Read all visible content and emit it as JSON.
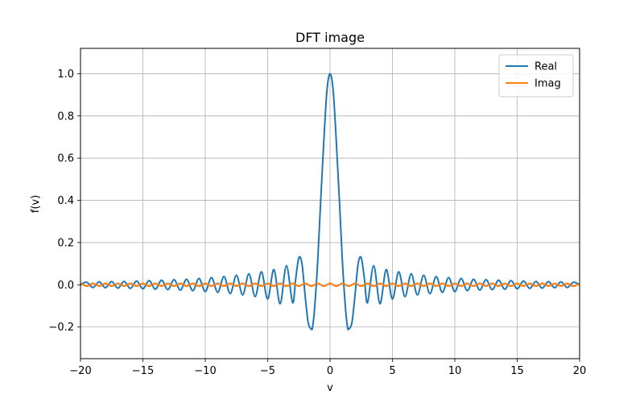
{
  "chart_data": {
    "type": "line",
    "title": "DFT image",
    "xlabel": "v",
    "ylabel": "f(v)",
    "xlim": [
      -20,
      20
    ],
    "ylim": [
      -0.35,
      1.12
    ],
    "xticks": [
      -20,
      -15,
      -10,
      -5,
      0,
      5,
      10,
      15,
      20
    ],
    "xtick_labels": [
      "−20",
      "−15",
      "−10",
      "−5",
      "0",
      "5",
      "10",
      "15",
      "20"
    ],
    "yticks": [
      -0.2,
      0.0,
      0.2,
      0.4,
      0.6,
      0.8,
      1.0
    ],
    "ytick_labels": [
      "−0.2",
      "0.0",
      "0.2",
      "0.4",
      "0.6",
      "0.8",
      "1.0"
    ],
    "grid": true,
    "legend_position": "upper right",
    "series": [
      {
        "name": "Real",
        "color": "#1f77b4",
        "x": [
          -20,
          -19.5,
          -19,
          -18.5,
          -18,
          -17.5,
          -17,
          -16.5,
          -16,
          -15.5,
          -15,
          -14.5,
          -14,
          -13.5,
          -13,
          -12.5,
          -12,
          -11.5,
          -11,
          -10.5,
          -10,
          -9.5,
          -9,
          -8.5,
          -8,
          -7.5,
          -7,
          -6.5,
          -6,
          -5.5,
          -5,
          -4.5,
          -4,
          -3.5,
          -3,
          -2.75,
          -2.5,
          -2.25,
          -2,
          -1.75,
          -1.5,
          -1.4,
          -1.25,
          -1,
          -0.75,
          -0.5,
          -0.25,
          0,
          0.25,
          0.5,
          0.75,
          1,
          1.25,
          1.4,
          1.5,
          1.75,
          2,
          2.25,
          2.5,
          2.75,
          3,
          3.5,
          4,
          4.5,
          5,
          5.5,
          6,
          6.5,
          7,
          7.5,
          8,
          8.5,
          9,
          9.5,
          10,
          10.5,
          11,
          11.5,
          12,
          12.5,
          13,
          13.5,
          14,
          14.5,
          15,
          15.5,
          16,
          16.5,
          17,
          17.5,
          18,
          18.5,
          19,
          19.5,
          20
        ],
        "y": [
          0.0,
          0.012,
          -0.013,
          0.014,
          -0.014,
          0.015,
          -0.016,
          0.016,
          -0.017,
          0.018,
          -0.019,
          0.02,
          -0.021,
          0.022,
          -0.023,
          0.024,
          -0.025,
          0.026,
          -0.028,
          0.03,
          -0.032,
          0.034,
          -0.036,
          0.039,
          -0.042,
          0.045,
          -0.048,
          0.052,
          -0.056,
          0.062,
          -0.068,
          0.072,
          -0.09,
          0.09,
          -0.085,
          0.03,
          0.128,
          0.1,
          -0.05,
          -0.18,
          -0.21,
          -0.2,
          -0.12,
          0.1,
          0.4,
          0.68,
          0.92,
          1.0,
          0.92,
          0.68,
          0.4,
          0.1,
          -0.12,
          -0.2,
          -0.21,
          -0.18,
          -0.05,
          0.1,
          0.128,
          0.03,
          -0.085,
          0.09,
          -0.09,
          0.072,
          -0.068,
          0.062,
          -0.056,
          0.052,
          -0.048,
          0.045,
          -0.042,
          0.039,
          -0.036,
          0.034,
          -0.032,
          0.03,
          -0.028,
          0.026,
          -0.025,
          0.024,
          -0.023,
          0.022,
          -0.021,
          0.02,
          -0.019,
          0.018,
          -0.017,
          0.016,
          -0.016,
          0.015,
          -0.014,
          0.014,
          -0.013,
          0.012,
          0.0
        ]
      },
      {
        "name": "Imag",
        "color": "#ff7f0e",
        "x": [
          -20,
          -19.5,
          -19,
          -18.5,
          -18,
          -17.5,
          -17,
          -16.5,
          -16,
          -15.5,
          -15,
          -14.5,
          -14,
          -13.5,
          -13,
          -12.5,
          -12,
          -11.5,
          -11,
          -10.5,
          -10,
          -9.5,
          -9,
          -8.5,
          -8,
          -7.5,
          -7,
          -6.5,
          -6,
          -5.5,
          -5,
          -4.5,
          -4,
          -3.5,
          -3,
          -2.5,
          -2,
          -1.5,
          -1,
          -0.5,
          0,
          0.5,
          1,
          1.5,
          2,
          2.5,
          3,
          3.5,
          4,
          4.5,
          5,
          5.5,
          6,
          6.5,
          7,
          7.5,
          8,
          8.5,
          9,
          9.5,
          10,
          10.5,
          11,
          11.5,
          12,
          12.5,
          13,
          13.5,
          14,
          14.5,
          15,
          15.5,
          16,
          16.5,
          17,
          17.5,
          18,
          18.5,
          19,
          19.5,
          20
        ],
        "y": [
          0.008,
          -0.007,
          0.007,
          -0.007,
          0.007,
          -0.007,
          0.007,
          -0.007,
          0.007,
          -0.007,
          0.007,
          -0.007,
          0.007,
          -0.007,
          0.007,
          -0.007,
          0.007,
          -0.007,
          0.007,
          -0.007,
          0.007,
          -0.007,
          0.007,
          -0.007,
          0.007,
          -0.007,
          0.007,
          -0.007,
          0.007,
          -0.007,
          0.007,
          -0.007,
          0.007,
          -0.007,
          0.007,
          -0.007,
          0.007,
          -0.007,
          0.007,
          -0.007,
          0.007,
          -0.007,
          0.007,
          -0.007,
          0.007,
          -0.007,
          0.007,
          -0.007,
          0.007,
          -0.007,
          0.007,
          -0.007,
          0.007,
          -0.007,
          0.007,
          -0.007,
          0.007,
          -0.007,
          0.007,
          -0.007,
          0.007,
          -0.007,
          0.007,
          -0.007,
          0.007,
          -0.007,
          0.007,
          -0.007,
          0.007,
          -0.007,
          0.007,
          -0.007,
          0.007,
          -0.007,
          0.007,
          -0.007,
          0.007,
          -0.007,
          0.007,
          -0.007,
          0.007
        ]
      }
    ]
  }
}
